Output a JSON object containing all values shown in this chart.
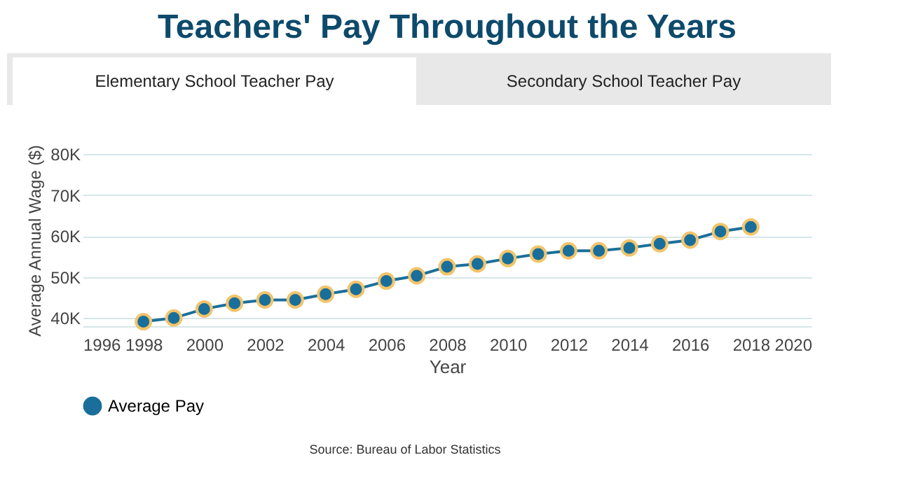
{
  "chart_data": {
    "type": "line",
    "title": "Teachers' Pay Throughout the Years",
    "xlabel": "Year",
    "ylabel": "Average Annual Wage ($)",
    "x": [
      1998,
      1999,
      2000,
      2001,
      2002,
      2003,
      2004,
      2005,
      2006,
      2007,
      2008,
      2009,
      2010,
      2011,
      2012,
      2013,
      2014,
      2015,
      2016,
      2017,
      2018
    ],
    "series": [
      {
        "name": "Average Pay",
        "color": "#1a6f9a",
        "values": [
          39100,
          40000,
          42200,
          43600,
          44400,
          44400,
          45800,
          47000,
          49000,
          50300,
          52500,
          53200,
          54500,
          55600,
          56400,
          56400,
          57100,
          58100,
          59000,
          61100,
          62200
        ]
      }
    ],
    "xlim": [
      1996,
      2020
    ],
    "xticks": [
      1996,
      1998,
      2000,
      2002,
      2004,
      2006,
      2008,
      2010,
      2012,
      2014,
      2016,
      2018,
      2020
    ],
    "ylim": [
      38000,
      80000
    ],
    "yticks": [
      {
        "value": 40000,
        "label": "40K"
      },
      {
        "value": 50000,
        "label": "50K"
      },
      {
        "value": 60000,
        "label": "60K"
      },
      {
        "value": 70000,
        "label": "70K"
      },
      {
        "value": 80000,
        "label": "80K"
      }
    ],
    "grid": "y",
    "legend": "bottom",
    "marker": "circle",
    "line_style": "solid",
    "annotations": [
      "Elementary School Teacher Pay",
      "Secondary School Teacher Pay",
      "Source: Bureau of Labor Statistics"
    ]
  }
}
